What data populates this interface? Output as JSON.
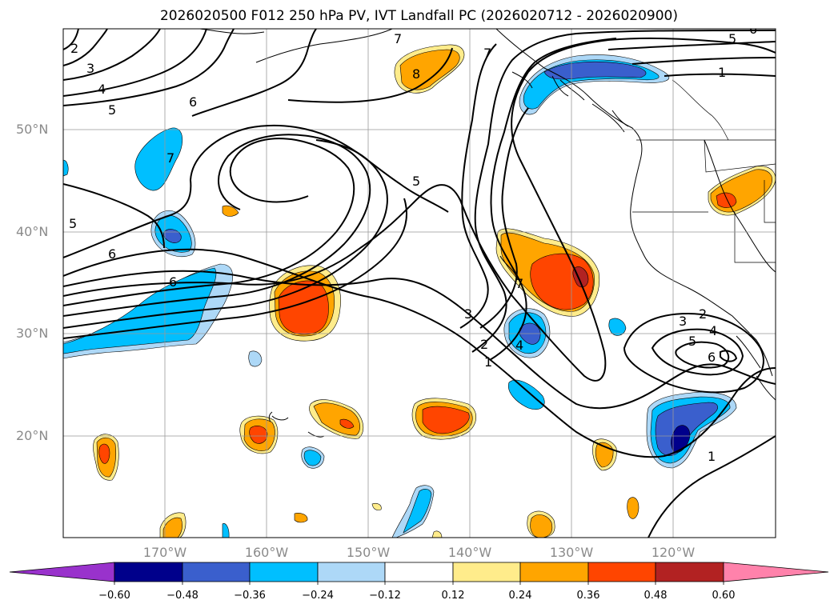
{
  "title": "2026020500 F012 250 hPa PV, IVT Landfall PC (2026020712 - 2026020900)",
  "map": {
    "lat_labels": [
      "50°N",
      "40°N",
      "30°N",
      "20°N"
    ],
    "lon_labels": [
      "170°W",
      "160°W",
      "150°W",
      "140°W",
      "130°W",
      "120°W"
    ],
    "contour_labels": [
      "2",
      "3",
      "4",
      "5",
      "6",
      "7",
      "7",
      "8",
      "5",
      "6",
      "6",
      "7",
      "5",
      "3",
      "2",
      "1",
      "7",
      "4",
      "1",
      "5",
      "3",
      "2",
      "4",
      "5",
      "6",
      "1",
      "6"
    ]
  },
  "colorbar": {
    "levels": [
      "−0.60",
      "−0.48",
      "−0.36",
      "−0.24",
      "−0.12",
      "0.12",
      "0.24",
      "0.36",
      "0.48",
      "0.60"
    ],
    "colors": [
      "#9932cc",
      "#00008b",
      "#3a5fcd",
      "#00bfff",
      "#add8f7",
      "#ffffff",
      "#ffec8b",
      "#ffa500",
      "#ff4500",
      "#b22222",
      "#ff82ab"
    ]
  }
}
